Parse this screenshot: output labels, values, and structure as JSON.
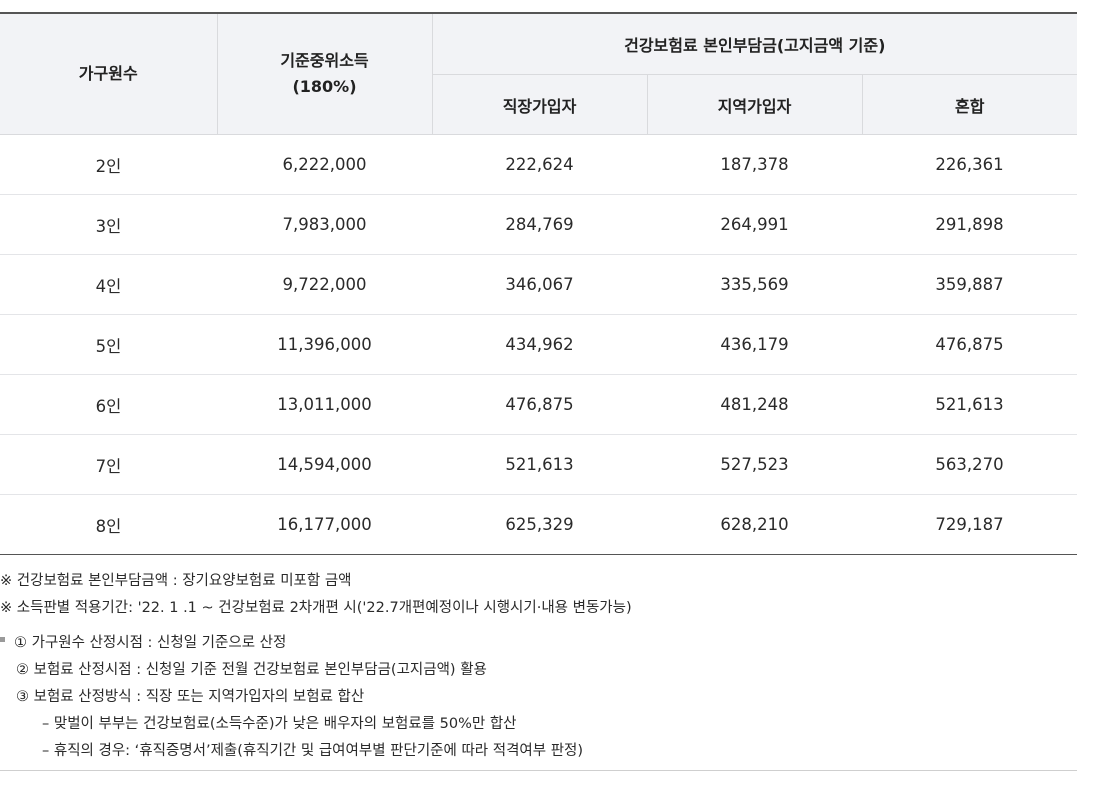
{
  "table": {
    "headers": {
      "household": "가구원수",
      "income_line1": "기준중위소득",
      "income_line2": "(180%)",
      "premium_group": "건강보험료 본인부담금(고지금액 기준)",
      "employee": "직장가입자",
      "regional": "지역가입자",
      "mixed": "혼합"
    },
    "rows": [
      [
        "2인",
        "6,222,000",
        "222,624",
        "187,378",
        "226,361"
      ],
      [
        "3인",
        "7,983,000",
        "284,769",
        "264,991",
        "291,898"
      ],
      [
        "4인",
        "9,722,000",
        "346,067",
        "335,569",
        "359,887"
      ],
      [
        "5인",
        "11,396,000",
        "434,962",
        "436,179",
        "476,875"
      ],
      [
        "6인",
        "13,011,000",
        "476,875",
        "481,248",
        "521,613"
      ],
      [
        "7인",
        "14,594,000",
        "521,613",
        "527,523",
        "563,270"
      ],
      [
        "8인",
        "16,177,000",
        "625,329",
        "628,210",
        "729,187"
      ]
    ]
  },
  "notes": {
    "note1": "※ 건강보험료 본인부담금액 :  장기요양보험료 미포함 금액",
    "note2": "※ 소득판별 적용기간: '22. 1 .1 ~ 건강보험료 2차개편 시('22.7개편예정이나 시행시기·내용 변동가능)",
    "item1": "① 가구원수 산정시점 : 신청일 기준으로 산정",
    "item2": "② 보험료 산정시점 : 신청일 기준 전월 건강보험료 본인부담금(고지금액) 활용",
    "item3": "③ 보험료 산정방식 : 직장 또는 지역가입자의 보험료 합산",
    "sub1": "– 맞벌이 부부는 건강보험료(소득수준)가 낮은 배우자의 보험료를 50%만 합산",
    "sub2": "– 휴직의 경우: ‘휴직증명서’제출(휴직기간 및 급여여부별 판단기준에 따라 적격여부 판정)"
  }
}
